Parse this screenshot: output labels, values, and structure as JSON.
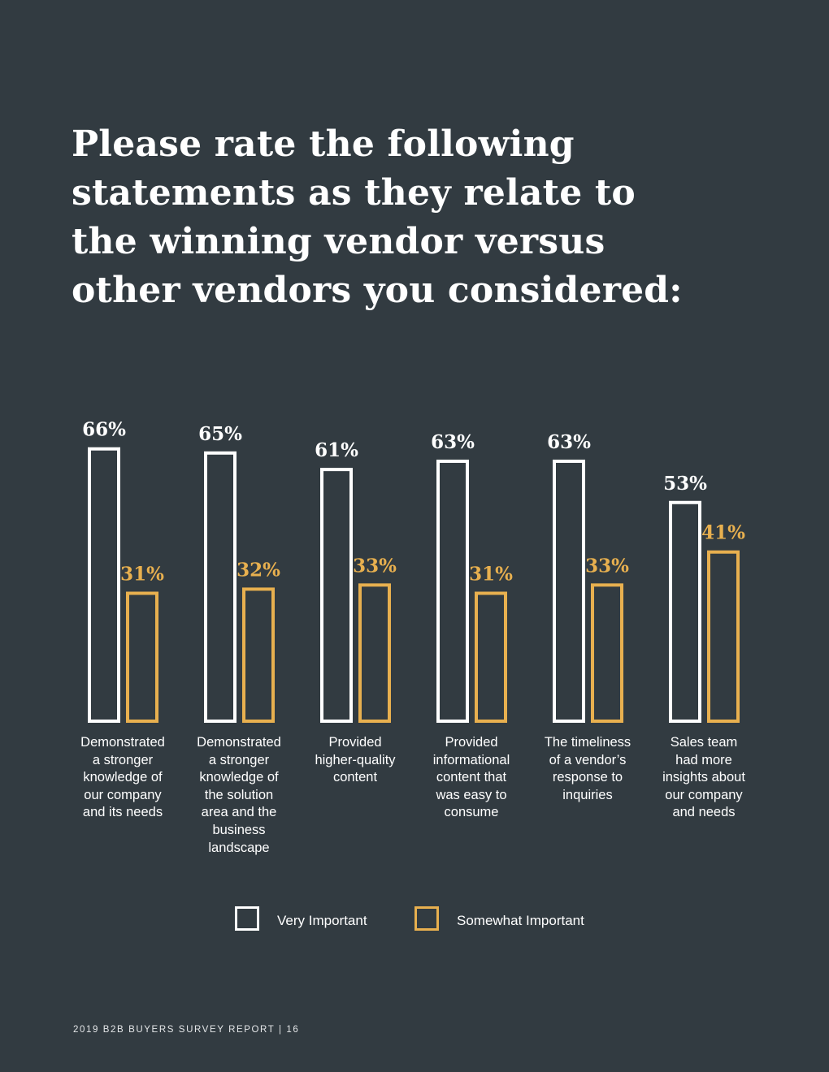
{
  "title_lines": [
    "Please rate the following",
    "statements as they relate to",
    "the winning vendor versus",
    "other vendors you considered:"
  ],
  "footer": "2019 B2B BUYERS SURVEY REPORT | 16",
  "colors": {
    "background": "#323b41",
    "very": "#ffffff",
    "somewhat": "#e8b04f"
  },
  "chart_data": {
    "type": "bar",
    "categories": [
      [
        "Demonstrated",
        "a stronger",
        "knowledge of",
        "our company",
        "and its needs"
      ],
      [
        "Demonstrated",
        "a stronger",
        "knowledge of",
        "the solution",
        "area and the",
        "business",
        "landscape"
      ],
      [
        "Provided",
        "higher-quality",
        "content"
      ],
      [
        "Provided",
        "informational",
        "content that",
        "was easy to",
        "consume"
      ],
      [
        "The timeliness",
        "of a vendor’s",
        "response to",
        "inquiries"
      ],
      [
        "Sales team",
        "had more",
        "insights about",
        "our company",
        "and needs"
      ]
    ],
    "series": [
      {
        "name": "Very Important",
        "values": [
          66,
          65,
          61,
          63,
          63,
          53
        ],
        "labels": [
          "66%",
          "65%",
          "61%",
          "63%",
          "63%",
          "53%"
        ]
      },
      {
        "name": "Somewhat Important",
        "values": [
          31,
          32,
          33,
          31,
          33,
          41
        ],
        "labels": [
          "31%",
          "32%",
          "33%",
          "31%",
          "33%",
          "41%"
        ]
      }
    ],
    "ylim": [
      0,
      100
    ],
    "legend": "bottom-center",
    "grid": false
  }
}
